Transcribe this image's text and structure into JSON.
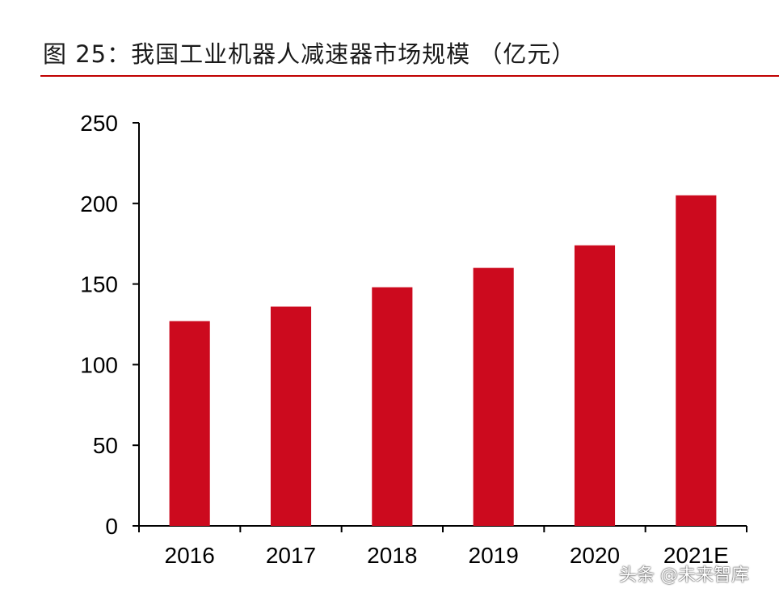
{
  "chart_data": {
    "type": "bar",
    "title": "图 25：我国工业机器人减速器市场规模 （亿元）",
    "categories": [
      "2016",
      "2017",
      "2018",
      "2019",
      "2020",
      "2021E"
    ],
    "values": [
      127,
      136,
      148,
      160,
      174,
      205
    ],
    "ylim": [
      0,
      250
    ],
    "yticks": [
      0,
      50,
      100,
      150,
      200,
      250
    ],
    "grid": false,
    "legend": "none",
    "bar_color": "#cc0a1e",
    "xlabel": "",
    "ylabel": ""
  },
  "accent_color": "#c00000",
  "watermark": "头条 @未来智库"
}
